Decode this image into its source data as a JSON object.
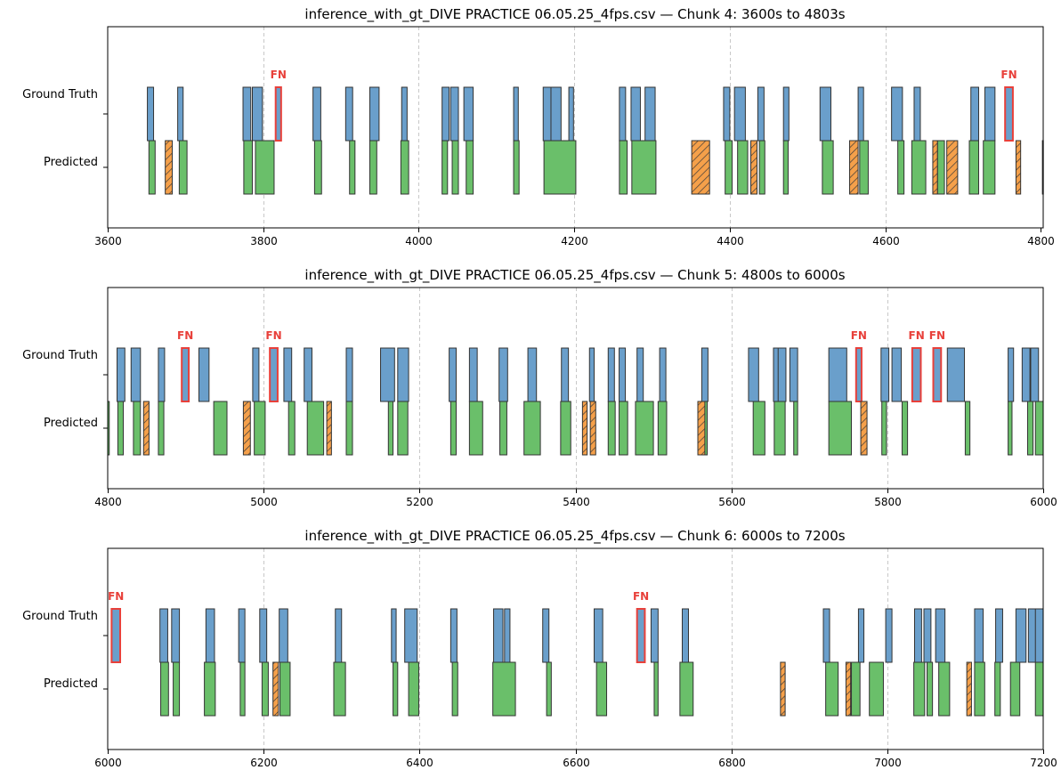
{
  "chart_data": [
    {
      "type": "timeline",
      "title": "inference_with_gt_DIVE PRACTICE 06.05.25_4fps.csv — Chunk 4: 3600s to 4803s",
      "xlim": [
        3600,
        4803
      ],
      "xticks": [
        3600,
        3800,
        4000,
        4200,
        4400,
        4600,
        4800
      ],
      "rows": [
        "Ground Truth",
        "Predicted"
      ],
      "grid": "vertical dashed",
      "ground_truth": [
        [
          3651,
          3659
        ],
        [
          3690,
          3697
        ],
        [
          3774,
          3784
        ],
        [
          3786,
          3799
        ],
        [
          3816,
          3823
        ],
        [
          3864,
          3874
        ],
        [
          3906,
          3915
        ],
        [
          3937,
          3949
        ],
        [
          3978,
          3985
        ],
        [
          4030,
          4039
        ],
        [
          4041,
          4051
        ],
        [
          4058,
          4070
        ],
        [
          4122,
          4128
        ],
        [
          4160,
          4172
        ],
        [
          4170,
          4183
        ],
        [
          4193,
          4199
        ],
        [
          4258,
          4266
        ],
        [
          4273,
          4285
        ],
        [
          4291,
          4304
        ],
        [
          4392,
          4400
        ],
        [
          4406,
          4420
        ],
        [
          4436,
          4444
        ],
        [
          4469,
          4476
        ],
        [
          4516,
          4530
        ],
        [
          4565,
          4572
        ],
        [
          4608,
          4622
        ],
        [
          4637,
          4645
        ],
        [
          4710,
          4720
        ],
        [
          4728,
          4741
        ],
        [
          4754,
          4764
        ]
      ],
      "ground_truth_fn": [
        [
          3816,
          3823
        ],
        [
          4754,
          4764
        ]
      ],
      "predicted_tp": [
        [
          3653,
          3661
        ],
        [
          3692,
          3702
        ],
        [
          3775,
          3786
        ],
        [
          3790,
          3814
        ],
        [
          3866,
          3875
        ],
        [
          3911,
          3918
        ],
        [
          3937,
          3946
        ],
        [
          3977,
          3987
        ],
        [
          4030,
          4037
        ],
        [
          4043,
          4051
        ],
        [
          4061,
          4070
        ],
        [
          4122,
          4129
        ],
        [
          4161,
          4202
        ],
        [
          4258,
          4268
        ],
        [
          4274,
          4305
        ],
        [
          4394,
          4403
        ],
        [
          4410,
          4423
        ],
        [
          4438,
          4445
        ],
        [
          4469,
          4475
        ],
        [
          4519,
          4533
        ],
        [
          4567,
          4578
        ],
        [
          4616,
          4624
        ],
        [
          4634,
          4652
        ],
        [
          4667,
          4676
        ],
        [
          4708,
          4720
        ],
        [
          4726,
          4741
        ],
        [
          4802,
          4812
        ]
      ],
      "predicted_fp": [
        [
          3674,
          3683
        ],
        [
          4351,
          4374
        ],
        [
          4427,
          4435
        ],
        [
          4554,
          4565
        ],
        [
          4661,
          4667
        ],
        [
          4679,
          4693
        ],
        [
          4768,
          4774
        ]
      ]
    },
    {
      "type": "timeline",
      "title": "inference_with_gt_DIVE PRACTICE 06.05.25_4fps.csv — Chunk 5: 4800s to 6000s",
      "xlim": [
        4800,
        6000
      ],
      "xticks": [
        4800,
        5000,
        5200,
        5400,
        5600,
        5800,
        6000
      ],
      "rows": [
        "Ground Truth",
        "Predicted"
      ],
      "grid": "vertical dashed",
      "ground_truth": [
        [
          4812,
          4822
        ],
        [
          4830,
          4842
        ],
        [
          4865,
          4873
        ],
        [
          4895,
          4904
        ],
        [
          4917,
          4930
        ],
        [
          4986,
          4994
        ],
        [
          5008,
          5018
        ],
        [
          5026,
          5036
        ],
        [
          5052,
          5062
        ],
        [
          5106,
          5114
        ],
        [
          5150,
          5168
        ],
        [
          5172,
          5186
        ],
        [
          5238,
          5247
        ],
        [
          5264,
          5274
        ],
        [
          5302,
          5313
        ],
        [
          5339,
          5350
        ],
        [
          5382,
          5391
        ],
        [
          5418,
          5424
        ],
        [
          5442,
          5450
        ],
        [
          5456,
          5464
        ],
        [
          5479,
          5487
        ],
        [
          5508,
          5516
        ],
        [
          5562,
          5570
        ],
        [
          5622,
          5635
        ],
        [
          5654,
          5667
        ],
        [
          5660,
          5670
        ],
        [
          5675,
          5685
        ],
        [
          5725,
          5748
        ],
        [
          5760,
          5767
        ],
        [
          5792,
          5802
        ],
        [
          5806,
          5818
        ],
        [
          5832,
          5843
        ],
        [
          5859,
          5869
        ],
        [
          5877,
          5899
        ],
        [
          5955,
          5962
        ],
        [
          5973,
          5983
        ],
        [
          5984,
          5994
        ]
      ],
      "ground_truth_fn": [
        [
          4895,
          4904
        ],
        [
          5008,
          5018
        ],
        [
          5760,
          5767
        ],
        [
          5832,
          5843
        ],
        [
          5859,
          5869
        ]
      ],
      "predicted_tp": [
        [
          4798,
          4802
        ],
        [
          4813,
          4820
        ],
        [
          4833,
          4842
        ],
        [
          4865,
          4872
        ],
        [
          4936,
          4953
        ],
        [
          4988,
          5002
        ],
        [
          5032,
          5040
        ],
        [
          5056,
          5077
        ],
        [
          5106,
          5114
        ],
        [
          5160,
          5166
        ],
        [
          5172,
          5185
        ],
        [
          5240,
          5247
        ],
        [
          5264,
          5281
        ],
        [
          5303,
          5312
        ],
        [
          5334,
          5355
        ],
        [
          5381,
          5394
        ],
        [
          5442,
          5451
        ],
        [
          5456,
          5467
        ],
        [
          5477,
          5500
        ],
        [
          5506,
          5517
        ],
        [
          5562,
          5569
        ],
        [
          5628,
          5643
        ],
        [
          5655,
          5669
        ],
        [
          5680,
          5685
        ],
        [
          5725,
          5754
        ],
        [
          5793,
          5799
        ],
        [
          5819,
          5826
        ],
        [
          5900,
          5906
        ],
        [
          5955,
          5960
        ],
        [
          5980,
          5987
        ],
        [
          5990,
          6000
        ]
      ],
      "predicted_fp": [
        [
          4846,
          4853
        ],
        [
          4974,
          4983
        ],
        [
          5081,
          5087
        ],
        [
          5409,
          5415
        ],
        [
          5419,
          5426
        ],
        [
          5557,
          5566
        ],
        [
          5766,
          5774
        ]
      ]
    },
    {
      "type": "timeline",
      "title": "inference_with_gt_DIVE PRACTICE 06.05.25_4fps.csv — Chunk 6: 6000s to 7200s",
      "xlim": [
        6000,
        7200
      ],
      "xticks": [
        6000,
        6200,
        6400,
        6600,
        6800,
        7000,
        7200
      ],
      "rows": [
        "Ground Truth",
        "Predicted"
      ],
      "grid": "vertical dashed",
      "ground_truth": [
        [
          6005,
          6016
        ],
        [
          6067,
          6077
        ],
        [
          6082,
          6092
        ],
        [
          6126,
          6137
        ],
        [
          6168,
          6176
        ],
        [
          6195,
          6204
        ],
        [
          6220,
          6231
        ],
        [
          6292,
          6300
        ],
        [
          6364,
          6370
        ],
        [
          6381,
          6397
        ],
        [
          6440,
          6448
        ],
        [
          6495,
          6507
        ],
        [
          6509,
          6516
        ],
        [
          6558,
          6566
        ],
        [
          6624,
          6635
        ],
        [
          6679,
          6689
        ],
        [
          6697,
          6706
        ],
        [
          6737,
          6745
        ],
        [
          6918,
          6926
        ],
        [
          6963,
          6970
        ],
        [
          6998,
          7006
        ],
        [
          7035,
          7044
        ],
        [
          7047,
          7056
        ],
        [
          7062,
          7074
        ],
        [
          7112,
          7123
        ],
        [
          7139,
          7148
        ],
        [
          7165,
          7178
        ],
        [
          7181,
          7192
        ],
        [
          7190,
          7200
        ]
      ],
      "ground_truth_fn": [
        [
          6005,
          6016
        ],
        [
          6679,
          6689
        ]
      ],
      "predicted_tp": [
        [
          6068,
          6078
        ],
        [
          6084,
          6092
        ],
        [
          6124,
          6138
        ],
        [
          6170,
          6176
        ],
        [
          6198,
          6206
        ],
        [
          6221,
          6234
        ],
        [
          6290,
          6305
        ],
        [
          6366,
          6372
        ],
        [
          6386,
          6399
        ],
        [
          6442,
          6449
        ],
        [
          6494,
          6523
        ],
        [
          6563,
          6569
        ],
        [
          6627,
          6640
        ],
        [
          6701,
          6706
        ],
        [
          6734,
          6751
        ],
        [
          6921,
          6937
        ],
        [
          6954,
          6965
        ],
        [
          6977,
          6995
        ],
        [
          7034,
          7048
        ],
        [
          7051,
          7058
        ],
        [
          7066,
          7080
        ],
        [
          7112,
          7125
        ],
        [
          7138,
          7145
        ],
        [
          7158,
          7170
        ],
        [
          7190,
          7200
        ]
      ],
      "predicted_fp": [
        [
          6212,
          6219
        ],
        [
          6863,
          6869
        ],
        [
          6947,
          6953
        ],
        [
          7102,
          7108
        ]
      ]
    }
  ]
}
